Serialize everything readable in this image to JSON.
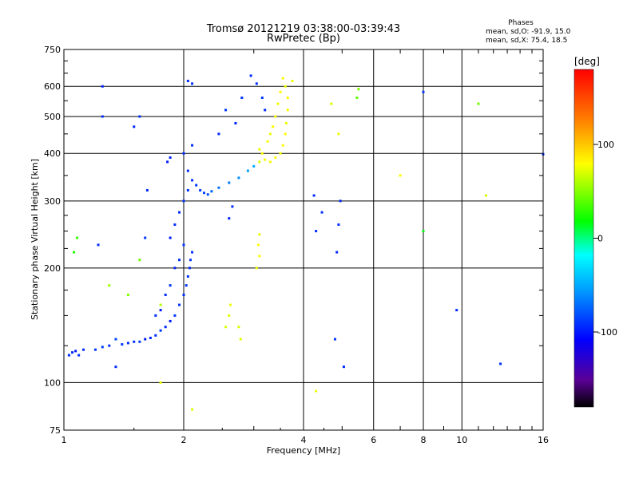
{
  "header": {
    "title_line1": "Tromsø 20121219 03:38:00-03:39:43",
    "title_line2": "RwPretec (Bp)",
    "stats_title": "Phases",
    "stats_line1": "mean, sd,O: -91.9, 15.0",
    "stats_line2": "mean, sd,X:  75.4, 18.5"
  },
  "colorbar": {
    "label": "[deg]",
    "ticks": [
      "100",
      "0",
      "-100"
    ],
    "range": [
      -180,
      180
    ]
  },
  "chart_data": {
    "type": "scatter",
    "title": "Tromsø 20121219 03:38:00-03:39:43",
    "subtitle": "RwPretec (Bp)",
    "xlabel": "Frequency [MHz]",
    "ylabel": "Stationary phase Virtual Height [km]",
    "xscale": "log",
    "yscale": "log",
    "xlim": [
      1,
      16
    ],
    "ylim": [
      75,
      750
    ],
    "xticks": [
      1,
      2,
      4,
      6,
      8,
      10,
      16
    ],
    "xtick_labels": [
      "1",
      "2",
      "4",
      "6",
      "8",
      "10",
      "16"
    ],
    "yticks": [
      75,
      100,
      200,
      300,
      400,
      500,
      600,
      750
    ],
    "ytick_labels": [
      "75",
      "100",
      "200",
      "300",
      "400",
      "500",
      "600",
      "750"
    ],
    "grid": true,
    "series": [
      {
        "polarization": "O",
        "points": [
          [
            1.03,
            118,
            -95
          ],
          [
            1.05,
            120,
            -92
          ],
          [
            1.07,
            121,
            -100
          ],
          [
            1.09,
            118,
            -90
          ],
          [
            1.12,
            122,
            -95
          ],
          [
            1.2,
            122,
            -90
          ],
          [
            1.25,
            124,
            -88
          ],
          [
            1.3,
            125,
            -92
          ],
          [
            1.35,
            130,
            -85
          ],
          [
            1.4,
            126,
            -90
          ],
          [
            1.45,
            127,
            -95
          ],
          [
            1.5,
            128,
            -92
          ],
          [
            1.55,
            128,
            -90
          ],
          [
            1.6,
            130,
            -100
          ],
          [
            1.65,
            131,
            -95
          ],
          [
            1.7,
            133,
            -92
          ],
          [
            1.75,
            137,
            -90
          ],
          [
            1.8,
            140,
            -95
          ],
          [
            1.85,
            145,
            -100
          ],
          [
            1.9,
            150,
            -90
          ],
          [
            1.95,
            160,
            -92
          ],
          [
            2.0,
            170,
            -95
          ],
          [
            2.03,
            180,
            -90
          ],
          [
            2.05,
            190,
            -92
          ],
          [
            2.07,
            200,
            -95
          ],
          [
            2.08,
            210,
            -90
          ],
          [
            2.1,
            220,
            -92
          ],
          [
            1.7,
            150,
            -95
          ],
          [
            1.75,
            155,
            -100
          ],
          [
            1.8,
            170,
            -92
          ],
          [
            1.85,
            180,
            -90
          ],
          [
            1.9,
            200,
            -95
          ],
          [
            1.95,
            210,
            -92
          ],
          [
            2.0,
            230,
            -90
          ],
          [
            1.85,
            240,
            -100
          ],
          [
            1.9,
            260,
            -92
          ],
          [
            1.95,
            280,
            -95
          ],
          [
            2.0,
            300,
            -90
          ],
          [
            2.05,
            320,
            -92
          ],
          [
            2.1,
            340,
            -95
          ],
          [
            2.15,
            330,
            -90
          ],
          [
            2.2,
            320,
            -88
          ],
          [
            2.25,
            315,
            -85
          ],
          [
            2.3,
            312,
            -80
          ],
          [
            2.35,
            318,
            -75
          ],
          [
            2.45,
            325,
            -70
          ],
          [
            2.6,
            335,
            -65
          ],
          [
            2.75,
            345,
            -60
          ],
          [
            2.9,
            360,
            -55
          ],
          [
            3.0,
            370,
            -50
          ],
          [
            2.05,
            360,
            -95
          ],
          [
            2.0,
            400,
            -92
          ],
          [
            2.1,
            420,
            -95
          ],
          [
            1.82,
            380,
            -100
          ],
          [
            1.85,
            390,
            -95
          ],
          [
            2.05,
            620,
            -95
          ],
          [
            2.1,
            610,
            -92
          ],
          [
            2.45,
            450,
            -95
          ],
          [
            2.55,
            520,
            -90
          ],
          [
            2.7,
            480,
            -95
          ],
          [
            2.8,
            560,
            -92
          ],
          [
            2.95,
            640,
            -95
          ],
          [
            3.05,
            610,
            -92
          ],
          [
            3.15,
            560,
            -90
          ],
          [
            3.2,
            520,
            -95
          ],
          [
            2.6,
            270,
            -95
          ],
          [
            2.65,
            290,
            -92
          ],
          [
            1.25,
            600,
            -95
          ],
          [
            1.25,
            500,
            -92
          ],
          [
            1.22,
            230,
            -95
          ],
          [
            1.5,
            470,
            -95
          ],
          [
            1.55,
            500,
            -92
          ],
          [
            1.62,
            320,
            -95
          ],
          [
            1.6,
            240,
            -90
          ],
          [
            4.25,
            310,
            -95
          ],
          [
            4.45,
            280,
            -92
          ],
          [
            4.95,
            300,
            -95
          ],
          [
            4.9,
            260,
            -92
          ],
          [
            4.85,
            220,
            -95
          ],
          [
            4.8,
            130,
            -92
          ],
          [
            5.05,
            110,
            -95
          ],
          [
            8.0,
            580,
            -90
          ],
          [
            9.7,
            155,
            -95
          ],
          [
            12.5,
            112,
            -92
          ],
          [
            16.0,
            398,
            -95
          ],
          [
            4.3,
            250,
            -92
          ],
          [
            1.35,
            110,
            -95
          ]
        ]
      },
      {
        "polarization": "X",
        "points": [
          [
            3.1,
            380,
            70
          ],
          [
            3.2,
            385,
            75
          ],
          [
            3.3,
            380,
            78
          ],
          [
            3.4,
            390,
            80
          ],
          [
            3.5,
            400,
            75
          ],
          [
            3.55,
            420,
            78
          ],
          [
            3.6,
            450,
            80
          ],
          [
            3.62,
            480,
            75
          ],
          [
            3.65,
            520,
            78
          ],
          [
            3.65,
            560,
            80
          ],
          [
            3.6,
            600,
            75
          ],
          [
            3.55,
            630,
            78
          ],
          [
            3.5,
            580,
            80
          ],
          [
            3.45,
            540,
            75
          ],
          [
            3.4,
            500,
            78
          ],
          [
            3.35,
            470,
            80
          ],
          [
            3.3,
            450,
            75
          ],
          [
            3.25,
            430,
            78
          ],
          [
            3.15,
            400,
            80
          ],
          [
            3.1,
            410,
            75
          ],
          [
            3.05,
            200,
            75
          ],
          [
            3.1,
            215,
            78
          ],
          [
            3.08,
            230,
            80
          ],
          [
            3.1,
            245,
            75
          ],
          [
            2.55,
            140,
            70
          ],
          [
            2.6,
            150,
            72
          ],
          [
            2.62,
            160,
            75
          ],
          [
            2.75,
            140,
            70
          ],
          [
            2.78,
            130,
            72
          ],
          [
            1.75,
            160,
            60
          ],
          [
            2.1,
            85,
            70
          ],
          [
            1.75,
            100,
            75
          ],
          [
            4.3,
            95,
            75
          ],
          [
            5.5,
            590,
            45
          ],
          [
            5.45,
            560,
            40
          ],
          [
            11.0,
            540,
            45
          ],
          [
            11.5,
            310,
            70
          ],
          [
            7.0,
            350,
            80
          ],
          [
            1.08,
            240,
            30
          ],
          [
            1.06,
            220,
            25
          ],
          [
            1.3,
            180,
            55
          ],
          [
            1.45,
            170,
            50
          ],
          [
            1.55,
            210,
            45
          ],
          [
            8.0,
            250,
            15
          ],
          [
            3.75,
            620,
            75
          ],
          [
            4.9,
            450,
            75
          ],
          [
            4.7,
            540,
            70
          ]
        ]
      }
    ]
  }
}
